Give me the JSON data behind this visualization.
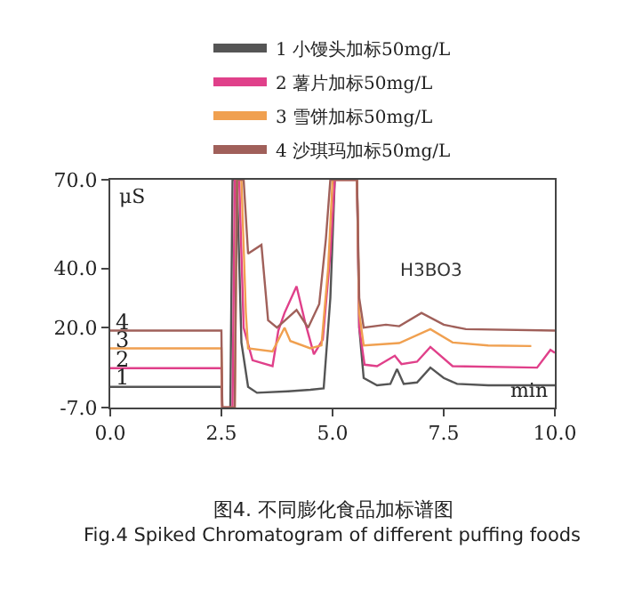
{
  "chart_data": {
    "type": "line",
    "title": "图4. 不同膨化食品加标谱图",
    "subtitle": "Fig.4 Spiked Chromatogram of different puffing foods",
    "xlabel": "min",
    "ylabel": "μS",
    "xlim": [
      0,
      10
    ],
    "xticks": [
      {
        "value": 0,
        "label": "0.0"
      },
      {
        "value": 2.5,
        "label": "2.5"
      },
      {
        "value": 5,
        "label": "5.0"
      },
      {
        "value": 7.5,
        "label": "7.5"
      },
      {
        "value": 10,
        "label": "10.0"
      }
    ],
    "ylim": [
      -7,
      70
    ],
    "yticks": [
      {
        "value": -7,
        "label": "-7.0"
      },
      {
        "value": 20,
        "label": "20.0"
      },
      {
        "value": 40,
        "label": "40.0"
      },
      {
        "value": 70,
        "label": "70.0"
      }
    ],
    "grid": false,
    "legend": "top",
    "marker": "none",
    "line_style": "solid",
    "annotations": [
      "H3BO3",
      {
        "text": "1",
        "y": 3
      },
      {
        "text": "2",
        "y": 9.5
      },
      {
        "text": "3",
        "y": 16
      },
      {
        "text": "4",
        "y": 22
      }
    ],
    "series": [
      {
        "name": "1 小馒头加标50mg/L",
        "color": "#555555",
        "x": [
          0,
          2.5,
          2.52,
          2.7,
          2.75,
          2.85,
          2.95,
          3.1,
          3.3,
          4.0,
          4.5,
          4.8,
          4.95,
          5.05,
          5.55,
          5.6,
          5.7,
          6.0,
          6.3,
          6.45,
          6.6,
          6.9,
          7.2,
          7.5,
          7.8,
          8.5,
          10
        ],
        "values": [
          0,
          0,
          -7,
          -7,
          70,
          70,
          15,
          0,
          -2,
          -1.5,
          -1,
          -0.5,
          30,
          70,
          70,
          20,
          3,
          0.5,
          1,
          6,
          1,
          1.5,
          6.5,
          3,
          1,
          0.5,
          0.5
        ]
      },
      {
        "name": "2 薯片加标50mg/L",
        "color": "#e0408a",
        "x": [
          0,
          2.5,
          2.52,
          2.75,
          2.8,
          2.9,
          3.0,
          3.2,
          3.65,
          3.78,
          3.92,
          4.19,
          4.38,
          4.58,
          4.78,
          4.95,
          5.05,
          5.55,
          5.6,
          5.72,
          6.0,
          6.4,
          6.55,
          6.9,
          7.2,
          7.7,
          9.6,
          9.9,
          10
        ],
        "values": [
          6.3,
          6.3,
          -7,
          -7,
          70,
          70,
          20,
          9,
          7,
          19,
          25,
          34,
          22,
          11,
          16,
          45,
          70,
          70,
          20,
          7.5,
          7,
          10.5,
          7.7,
          8.5,
          13.5,
          7,
          6.5,
          12.5,
          11.5
        ]
      },
      {
        "name": "3 雪饼加标50mg/L",
        "color": "#f0a050",
        "x": [
          0,
          2.5,
          2.52,
          2.8,
          2.85,
          2.95,
          3.05,
          3.1,
          3.65,
          3.92,
          4.05,
          4.5,
          4.75,
          4.9,
          5.0,
          5.55,
          5.6,
          5.7,
          6.5,
          7.2,
          7.7,
          8.5,
          9.47
        ],
        "values": [
          13,
          13,
          -7,
          -7,
          70,
          70,
          25,
          13,
          12,
          20,
          15.5,
          13,
          14,
          40,
          70,
          70,
          25,
          14,
          14.8,
          19.5,
          15,
          14,
          13.8
        ]
      },
      {
        "name": "4 沙琪玛加标50mg/L",
        "color": "#a0605a",
        "x": [
          0,
          2.5,
          2.52,
          2.8,
          2.85,
          3.0,
          3.1,
          3.4,
          3.55,
          3.75,
          4.19,
          4.45,
          4.7,
          4.85,
          4.95,
          5.55,
          5.6,
          5.7,
          6.2,
          6.5,
          7.0,
          7.5,
          8.0,
          10
        ],
        "values": [
          19,
          19,
          -7,
          -7,
          70,
          70,
          45,
          48,
          22.5,
          20,
          26,
          20,
          28,
          50,
          70,
          70,
          30,
          20,
          21,
          20.5,
          25,
          21,
          19.5,
          19
        ]
      }
    ]
  }
}
